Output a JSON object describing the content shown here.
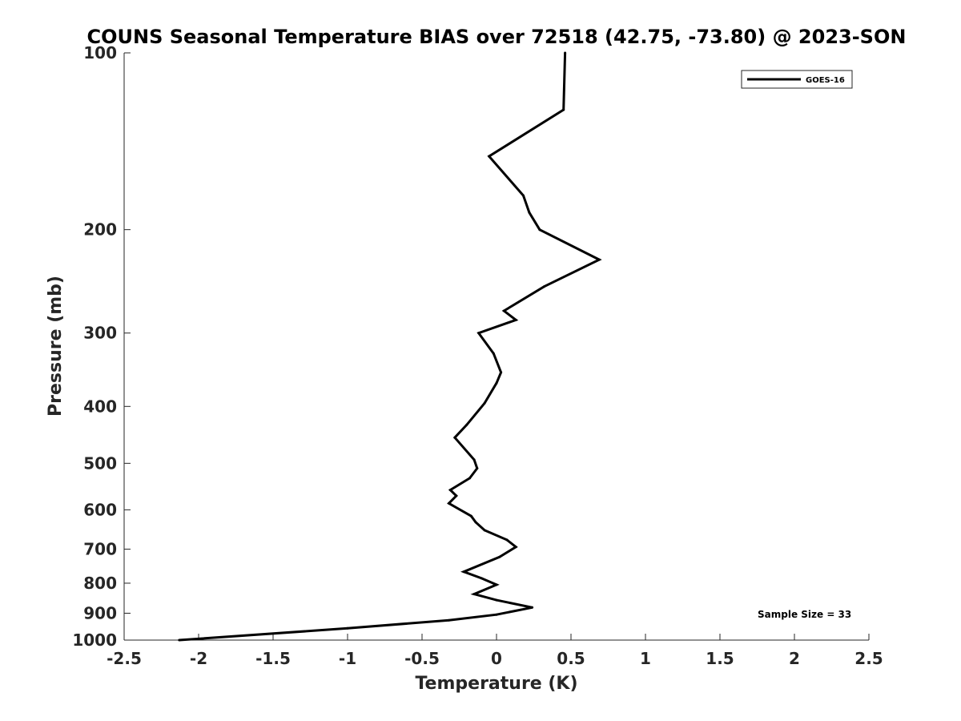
{
  "chart_data": {
    "type": "line",
    "title": "COUNS Seasonal Temperature BIAS over 72518 (42.75, -73.80) @ 2023-SON",
    "xlabel": "Temperature (K)",
    "ylabel": "Pressure (mb)",
    "xlim": [
      -2.5,
      2.5
    ],
    "ylim": [
      100,
      1000
    ],
    "y_scale": "log",
    "y_reversed": true,
    "x_ticks": [
      -2.5,
      -2,
      -1.5,
      -1,
      -0.5,
      0,
      0.5,
      1,
      1.5,
      2,
      2.5
    ],
    "x_tick_labels": [
      "-2.5",
      "-2",
      "-1.5",
      "-1",
      "-0.5",
      "0",
      "0.5",
      "1",
      "1.5",
      "2",
      "2.5"
    ],
    "y_ticks": [
      100,
      200,
      300,
      400,
      500,
      600,
      700,
      800,
      900,
      1000
    ],
    "y_tick_labels": [
      "100",
      "200",
      "300",
      "400",
      "500",
      "600",
      "700",
      "800",
      "900",
      "1000"
    ],
    "grid": false,
    "legend_position": "top-right",
    "series": [
      {
        "name": "GOES-16",
        "color": "#000000",
        "points": [
          {
            "x": 0.46,
            "p": 100
          },
          {
            "x": 0.45,
            "p": 125
          },
          {
            "x": -0.05,
            "p": 150
          },
          {
            "x": 0.18,
            "p": 175
          },
          {
            "x": 0.22,
            "p": 187
          },
          {
            "x": 0.29,
            "p": 200
          },
          {
            "x": 0.69,
            "p": 225
          },
          {
            "x": 0.32,
            "p": 250
          },
          {
            "x": 0.05,
            "p": 275
          },
          {
            "x": 0.13,
            "p": 285
          },
          {
            "x": -0.12,
            "p": 300
          },
          {
            "x": -0.02,
            "p": 325
          },
          {
            "x": 0.03,
            "p": 350
          },
          {
            "x": 0.0,
            "p": 365
          },
          {
            "x": -0.08,
            "p": 395
          },
          {
            "x": -0.2,
            "p": 430
          },
          {
            "x": -0.28,
            "p": 452
          },
          {
            "x": -0.15,
            "p": 493
          },
          {
            "x": -0.13,
            "p": 510
          },
          {
            "x": -0.18,
            "p": 530
          },
          {
            "x": -0.31,
            "p": 555
          },
          {
            "x": -0.27,
            "p": 568
          },
          {
            "x": -0.32,
            "p": 585
          },
          {
            "x": -0.17,
            "p": 615
          },
          {
            "x": -0.14,
            "p": 630
          },
          {
            "x": -0.08,
            "p": 650
          },
          {
            "x": 0.07,
            "p": 675
          },
          {
            "x": 0.13,
            "p": 694
          },
          {
            "x": 0.02,
            "p": 722
          },
          {
            "x": -0.22,
            "p": 765
          },
          {
            "x": -0.1,
            "p": 785
          },
          {
            "x": 0.0,
            "p": 805
          },
          {
            "x": -0.15,
            "p": 835
          },
          {
            "x": 0.0,
            "p": 855
          },
          {
            "x": 0.24,
            "p": 880
          },
          {
            "x": 0.0,
            "p": 905
          },
          {
            "x": -0.32,
            "p": 925
          },
          {
            "x": -1.0,
            "p": 955
          },
          {
            "x": -2.13,
            "p": 1000
          }
        ]
      }
    ],
    "annotations": [
      {
        "text": "Sample Size = 33"
      }
    ]
  }
}
